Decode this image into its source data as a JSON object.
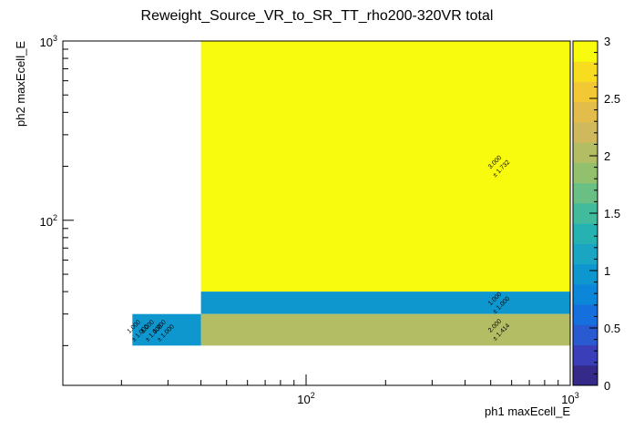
{
  "chart_data": {
    "type": "heatmap",
    "title": "Reweight_Source_VR_to_SR_TT_rho200-320VR total",
    "xlabel": "ph1 maxEcell_E",
    "ylabel": "ph2 maxEcell_E",
    "x_scale": "log",
    "y_scale": "log",
    "xlim": [
      12,
      1000
    ],
    "ylim": [
      12,
      1000
    ],
    "x_ticks": [
      {
        "value": 100,
        "base": "10",
        "exp": "2"
      },
      {
        "value": 1000,
        "base": "10",
        "exp": "3"
      }
    ],
    "y_ticks": [
      {
        "value": 100,
        "base": "10",
        "exp": "2"
      },
      {
        "value": 1000,
        "base": "10",
        "exp": "3"
      }
    ],
    "colorbar": {
      "min": 0,
      "max": 3,
      "tick_labels": [
        "0",
        "0.5",
        "1",
        "1.5",
        "2",
        "2.5",
        "3"
      ]
    },
    "cells": [
      {
        "x0": 40,
        "x1": 1000,
        "y0": 40,
        "y1": 1000,
        "value": 3.0,
        "label": "3.000",
        "error": "± 1.732"
      },
      {
        "x0": 40,
        "x1": 1000,
        "y0": 30,
        "y1": 40,
        "value": 1.0,
        "label": "1.000",
        "error": "± 1.000"
      },
      {
        "x0": 40,
        "x1": 1000,
        "y0": 20,
        "y1": 30,
        "value": 2.0,
        "label": "2.000",
        "error": "± 1.414"
      },
      {
        "x0": 22,
        "x1": 40,
        "y0": 20,
        "y1": 30,
        "value": 1.0,
        "label": "1.000",
        "error": "± 1.000",
        "overlay_labels": [
          "1.000",
          "1.000"
        ],
        "overlay_errors": [
          "± 1.000",
          "± 1.000"
        ]
      }
    ]
  }
}
